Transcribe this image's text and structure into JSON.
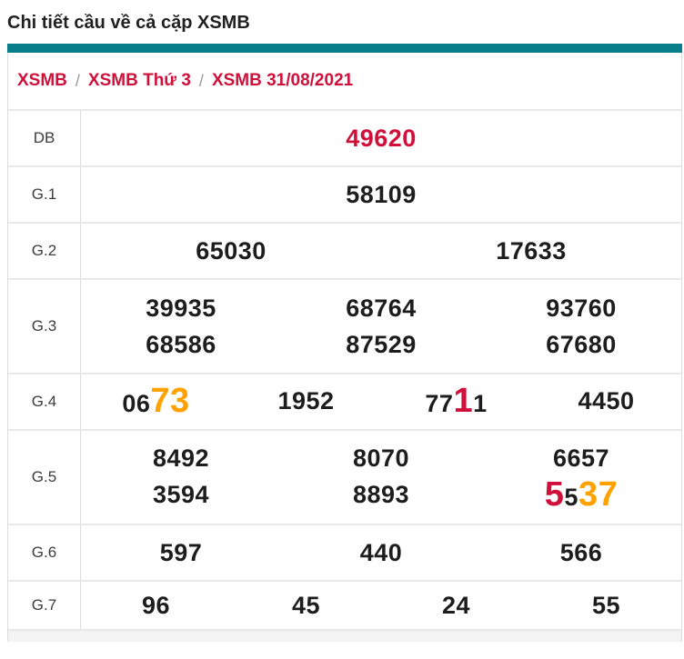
{
  "page": {
    "title": "Chi tiết cầu về cả cặp XSMB"
  },
  "breadcrumb": {
    "separator": "/",
    "items": [
      "XSMB",
      "XSMB Thứ 3",
      "XSMB 31/08/2021"
    ]
  },
  "colors": {
    "accent_teal": "#077E8A",
    "highlight_red": "#D0103A",
    "highlight_orange": "#FFA200",
    "number_dark": "#1D1D1D"
  },
  "prize_table": {
    "rows": [
      {
        "label": "DB",
        "lines": [
          [
            [
              {
                "t": "49620",
                "c": "red"
              }
            ]
          ]
        ]
      },
      {
        "label": "G.1",
        "lines": [
          [
            [
              {
                "t": "58109"
              }
            ]
          ]
        ]
      },
      {
        "label": "G.2",
        "lines": [
          [
            [
              {
                "t": "65030"
              }
            ],
            [
              {
                "t": "17633"
              }
            ]
          ]
        ]
      },
      {
        "label": "G.3",
        "lines": [
          [
            [
              {
                "t": "39935"
              }
            ],
            [
              {
                "t": "68764"
              }
            ],
            [
              {
                "t": "93760"
              }
            ]
          ],
          [
            [
              {
                "t": "68586"
              }
            ],
            [
              {
                "t": "87529"
              }
            ],
            [
              {
                "t": "67680"
              }
            ]
          ]
        ]
      },
      {
        "label": "G.4",
        "lines": [
          [
            [
              {
                "t": "06"
              },
              {
                "t": "73",
                "c": "orange",
                "big": true
              }
            ],
            [
              {
                "t": "1952"
              }
            ],
            [
              {
                "t": "77"
              },
              {
                "t": "1",
                "c": "red",
                "big": true
              },
              {
                "t": "1"
              }
            ],
            [
              {
                "t": "4450"
              }
            ]
          ]
        ]
      },
      {
        "label": "G.5",
        "lines": [
          [
            [
              {
                "t": "8492"
              }
            ],
            [
              {
                "t": "8070"
              }
            ],
            [
              {
                "t": "6657"
              }
            ]
          ],
          [
            [
              {
                "t": "3594"
              }
            ],
            [
              {
                "t": "8893"
              }
            ],
            [
              {
                "t": "5",
                "c": "red",
                "big": true
              },
              {
                "t": "5"
              },
              {
                "t": "37",
                "c": "orange",
                "big": true
              }
            ]
          ]
        ]
      },
      {
        "label": "G.6",
        "lines": [
          [
            [
              {
                "t": "597"
              }
            ],
            [
              {
                "t": "440"
              }
            ],
            [
              {
                "t": "566"
              }
            ]
          ]
        ]
      },
      {
        "label": "G.7",
        "short": true,
        "lines": [
          [
            [
              {
                "t": "96"
              }
            ],
            [
              {
                "t": "45"
              }
            ],
            [
              {
                "t": "24"
              }
            ],
            [
              {
                "t": "55"
              }
            ]
          ]
        ]
      }
    ]
  }
}
